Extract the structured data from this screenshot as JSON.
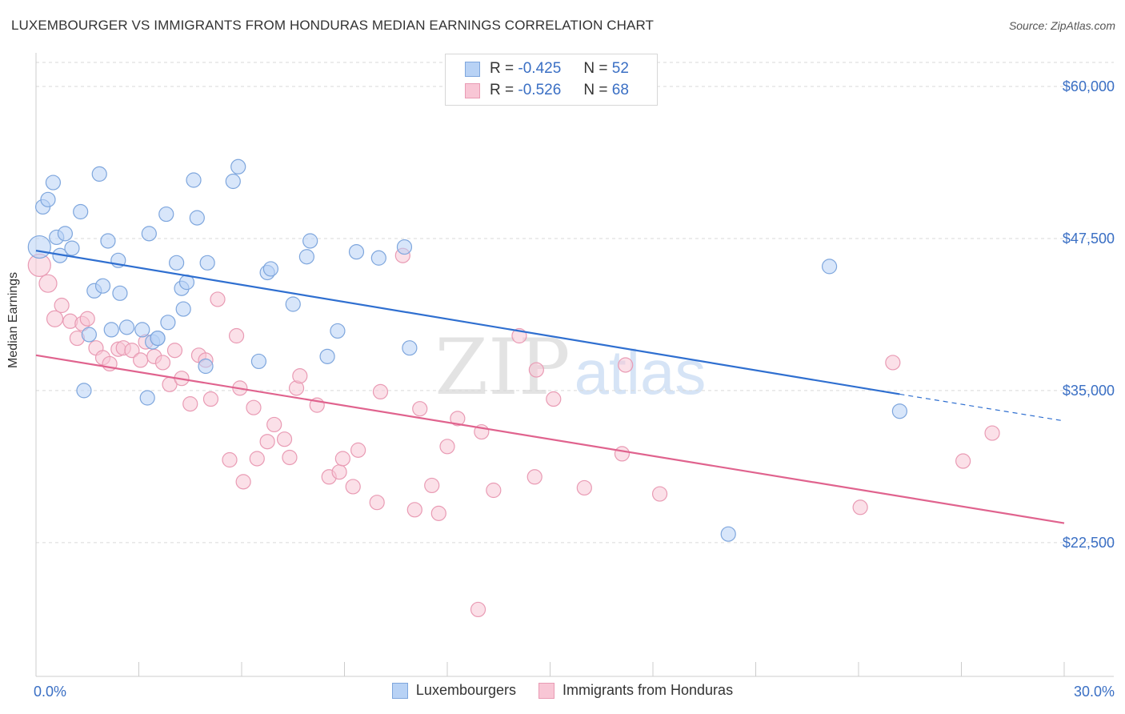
{
  "title": "LUXEMBOURGER VS IMMIGRANTS FROM HONDURAS MEDIAN EARNINGS CORRELATION CHART",
  "source": "Source: ZipAtlas.com",
  "watermark": {
    "zip": "ZIP",
    "atlas": "atlas"
  },
  "legend": {
    "rows": [
      {
        "r_label": "R =",
        "r_value": "-0.425",
        "n_label": "N =",
        "n_value": "52"
      },
      {
        "r_label": "R =",
        "r_value": "-0.526",
        "n_label": "N =",
        "n_value": "68"
      }
    ]
  },
  "bottom_legend": {
    "series1": "Luxembourgers",
    "series2": "Immigrants from Honduras"
  },
  "colors": {
    "blue_fill": "#b8d2f5",
    "blue_stroke": "#7ea6dd",
    "blue_line": "#2f6fd0",
    "pink_fill": "#f8c6d5",
    "pink_stroke": "#e99bb4",
    "pink_line": "#e0638e",
    "axis_label": "#3a6fc4",
    "grid": "#d9d9d9"
  },
  "chart_data": {
    "type": "scatter",
    "title": "LUXEMBOURGER VS IMMIGRANTS FROM HONDURAS MEDIAN EARNINGS CORRELATION CHART",
    "xlabel": "",
    "ylabel": "Median Earnings",
    "xlim": [
      0,
      30
    ],
    "ylim": [
      11500,
      62500
    ],
    "x_tick_labels": [
      "0.0%",
      "30.0%"
    ],
    "y_ticks": [
      22500,
      35000,
      47500,
      60000
    ],
    "y_tick_labels": [
      "$22,500",
      "$35,000",
      "$47,500",
      "$60,000"
    ],
    "series": [
      {
        "name": "Luxembourgers",
        "R": -0.425,
        "N": 52,
        "trend": {
          "x0": 0,
          "y0": 46500,
          "x1": 25.2,
          "y1": 34700,
          "dash_x1": 30,
          "dash_y1": 32500
        },
        "points": [
          [
            0.1,
            46800,
            14
          ],
          [
            0.2,
            50100,
            9
          ],
          [
            0.35,
            50700,
            9
          ],
          [
            0.5,
            52100,
            9
          ],
          [
            0.6,
            47600,
            9
          ],
          [
            0.7,
            46100,
            9
          ],
          [
            0.85,
            47900,
            9
          ],
          [
            1.05,
            46700,
            9
          ],
          [
            1.3,
            49700,
            9
          ],
          [
            1.85,
            52800,
            9
          ],
          [
            2.1,
            47300,
            9
          ],
          [
            2.4,
            45700,
            9
          ],
          [
            1.7,
            43200,
            9
          ],
          [
            1.95,
            43600,
            9
          ],
          [
            2.45,
            43000,
            9
          ],
          [
            1.55,
            39600,
            9
          ],
          [
            2.2,
            40000,
            9
          ],
          [
            2.65,
            40200,
            9
          ],
          [
            3.1,
            40000,
            9
          ],
          [
            3.4,
            39000,
            9
          ],
          [
            3.55,
            39300,
            9
          ],
          [
            3.25,
            34400,
            9
          ],
          [
            1.4,
            35000,
            9
          ],
          [
            3.3,
            47900,
            9
          ],
          [
            3.8,
            49500,
            9
          ],
          [
            4.1,
            45500,
            9
          ],
          [
            4.25,
            43400,
            9
          ],
          [
            4.4,
            43900,
            9
          ],
          [
            4.3,
            41700,
            9
          ],
          [
            3.85,
            40600,
            9
          ],
          [
            4.6,
            52300,
            9
          ],
          [
            4.7,
            49200,
            9
          ],
          [
            5.0,
            45500,
            9
          ],
          [
            5.75,
            52200,
            9
          ],
          [
            5.9,
            53400,
            9
          ],
          [
            6.75,
            44700,
            9
          ],
          [
            6.85,
            45000,
            9
          ],
          [
            6.5,
            37400,
            9
          ],
          [
            4.95,
            37000,
            9
          ],
          [
            7.5,
            42100,
            9
          ],
          [
            7.9,
            46000,
            9
          ],
          [
            8.0,
            47300,
            9
          ],
          [
            8.5,
            37800,
            9
          ],
          [
            8.8,
            39900,
            9
          ],
          [
            9.35,
            46400,
            9
          ],
          [
            10.0,
            45900,
            9
          ],
          [
            10.75,
            46800,
            9
          ],
          [
            10.9,
            38500,
            9
          ],
          [
            23.15,
            45200,
            9
          ],
          [
            25.2,
            33300,
            9
          ],
          [
            20.2,
            23200,
            9
          ],
          [
            3.55,
            39300,
            9
          ]
        ]
      },
      {
        "name": "Immigrants from Honduras",
        "R": -0.526,
        "N": 68,
        "trend": {
          "x0": 0,
          "y0": 37900,
          "x1": 30,
          "y1": 24100
        },
        "points": [
          [
            0.1,
            45300,
            14
          ],
          [
            0.35,
            43800,
            11
          ],
          [
            0.55,
            40900,
            10
          ],
          [
            0.75,
            42000,
            9
          ],
          [
            1.0,
            40700,
            9
          ],
          [
            1.2,
            39300,
            9
          ],
          [
            1.35,
            40500,
            9
          ],
          [
            1.5,
            40900,
            9
          ],
          [
            1.75,
            38500,
            9
          ],
          [
            1.95,
            37700,
            9
          ],
          [
            2.15,
            37200,
            9
          ],
          [
            2.4,
            38400,
            9
          ],
          [
            2.55,
            38500,
            9
          ],
          [
            2.8,
            38300,
            9
          ],
          [
            3.05,
            37500,
            9
          ],
          [
            3.2,
            39000,
            9
          ],
          [
            3.45,
            37800,
            9
          ],
          [
            3.7,
            37300,
            9
          ],
          [
            3.9,
            35500,
            9
          ],
          [
            4.05,
            38300,
            9
          ],
          [
            4.25,
            36000,
            9
          ],
          [
            4.5,
            33900,
            9
          ],
          [
            4.75,
            37900,
            9
          ],
          [
            4.95,
            37500,
            9
          ],
          [
            5.1,
            34300,
            9
          ],
          [
            5.3,
            42500,
            9
          ],
          [
            5.65,
            29300,
            9
          ],
          [
            5.85,
            39500,
            9
          ],
          [
            5.95,
            35200,
            9
          ],
          [
            6.05,
            27500,
            9
          ],
          [
            6.35,
            33600,
            9
          ],
          [
            6.45,
            29400,
            9
          ],
          [
            6.75,
            30800,
            9
          ],
          [
            6.95,
            32200,
            9
          ],
          [
            7.25,
            31000,
            9
          ],
          [
            7.4,
            29500,
            9
          ],
          [
            7.6,
            35200,
            9
          ],
          [
            7.7,
            36200,
            9
          ],
          [
            8.2,
            33800,
            9
          ],
          [
            8.55,
            27900,
            9
          ],
          [
            8.85,
            28300,
            9
          ],
          [
            8.95,
            29400,
            9
          ],
          [
            9.25,
            27100,
            9
          ],
          [
            9.4,
            30100,
            9
          ],
          [
            9.95,
            25800,
            9
          ],
          [
            10.05,
            34900,
            9
          ],
          [
            10.7,
            46100,
            9
          ],
          [
            11.05,
            25200,
            9
          ],
          [
            11.2,
            33500,
            9
          ],
          [
            11.55,
            27200,
            9
          ],
          [
            11.75,
            24900,
            9
          ],
          [
            12.0,
            30400,
            9
          ],
          [
            12.3,
            32700,
            9
          ],
          [
            13.0,
            31600,
            9
          ],
          [
            13.35,
            26800,
            9
          ],
          [
            14.1,
            39500,
            9
          ],
          [
            14.55,
            27900,
            9
          ],
          [
            14.6,
            36700,
            9
          ],
          [
            15.1,
            34300,
            9
          ],
          [
            16.0,
            27000,
            9
          ],
          [
            17.1,
            29800,
            9
          ],
          [
            17.2,
            37100,
            9
          ],
          [
            18.2,
            26500,
            9
          ],
          [
            12.9,
            17000,
            9
          ],
          [
            24.05,
            25400,
            9
          ],
          [
            25.0,
            37300,
            9
          ],
          [
            27.05,
            29200,
            9
          ],
          [
            27.9,
            31500,
            9
          ]
        ]
      }
    ]
  }
}
